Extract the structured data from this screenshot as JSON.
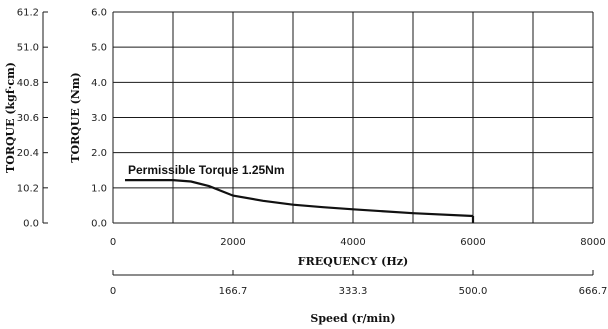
{
  "chart_data": {
    "type": "line",
    "annotation": "Permissible Torque 1.25Nm",
    "xlabel": "FREQUENCY (Hz)",
    "x2label": "Speed (r/min)",
    "ylabel": "TORQUE (Nm)",
    "y2label": "TORQUE (kgf·cm)",
    "xlim": [
      0,
      8000
    ],
    "ylim": [
      0,
      6
    ],
    "x_ticks": [
      "0",
      "2000",
      "4000",
      "6000",
      "8000"
    ],
    "speed_ticks": [
      "0",
      "166.7",
      "333.3",
      "500.0",
      "666.7"
    ],
    "y_ticks": [
      "0.0",
      "1.0",
      "2.0",
      "3.0",
      "4.0",
      "5.0",
      "6.0"
    ],
    "y2_ticks": [
      "0.0",
      "10.2",
      "20.4",
      "30.6",
      "40.8",
      "51.0",
      "61.2"
    ],
    "grid": true,
    "series": [
      {
        "x": [
          200,
          1000,
          1300,
          1600,
          2000,
          2500,
          3000,
          3500,
          4000,
          5000,
          6000
        ],
        "values": [
          1.22,
          1.22,
          1.18,
          1.05,
          0.78,
          0.63,
          0.52,
          0.45,
          0.39,
          0.28,
          0.2
        ]
      }
    ],
    "drop_x": 6000
  }
}
